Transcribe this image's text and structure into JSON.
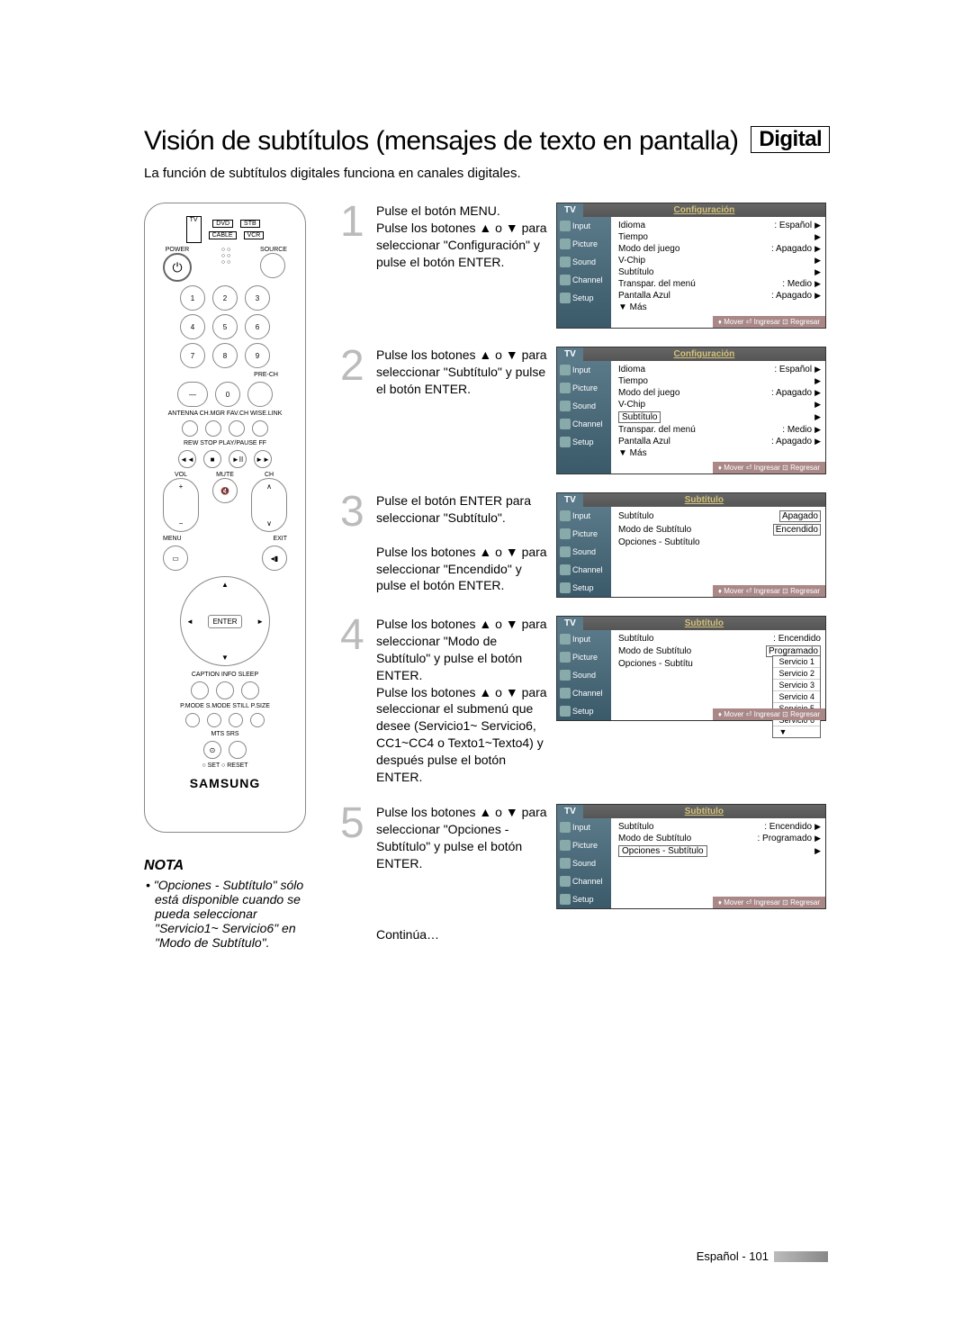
{
  "title": "Visión de subtítulos (mensajes de texto en pantalla)",
  "title_badge": "Digital",
  "intro": "La función de subtítulos digitales funciona en canales digitales.",
  "remote": {
    "top_row_left": "TV",
    "top_row1": [
      "DVD",
      "STB"
    ],
    "top_row2": [
      "CABLE",
      "VCR"
    ],
    "power_label": "POWER",
    "source_label": "SOURCE",
    "numpad": [
      "1",
      "2",
      "3",
      "4",
      "5",
      "6",
      "7",
      "8",
      "9",
      "0"
    ],
    "prech": "PRE-CH",
    "dash": "—",
    "row_labels": "ANTENNA  CH.MGR  FAV.CH  WISE.LINK",
    "transport": "REW   STOP  PLAY/PAUSE   FF",
    "vol": "VOL",
    "ch": "CH",
    "mute": "MUTE",
    "menu": "MENU",
    "exit": "EXIT",
    "enter": "ENTER",
    "row_caption": "CAPTION   INFO   SLEEP",
    "row_pmode": "P.MODE  S.MODE  STILL  P.SIZE",
    "row_mts": "MTS   SRS",
    "row_set": "○ SET   ○ RESET",
    "brand": "SAMSUNG"
  },
  "nota_title": "NOTA",
  "nota_body": "• \"Opciones - Subtítulo\" sólo está disponible cuando se pueda seleccionar \"Servicio1~ Servicio6\" en \"Modo de Subtítulo\".",
  "steps": [
    {
      "num": "1",
      "text": "Pulse el botón MENU.\nPulse los botones ▲ o ▼ para seleccionar \"Configuración\" y pulse el botón ENTER.",
      "menu_title": "Configuración",
      "rows": [
        {
          "label": "Idioma",
          "value": ": Español",
          "arrow": true
        },
        {
          "label": "Tiempo",
          "value": "",
          "arrow": true
        },
        {
          "label": "Modo del juego",
          "value": ": Apagado",
          "arrow": true
        },
        {
          "label": "V-Chip",
          "value": "",
          "arrow": true
        },
        {
          "label": "Subtítulo",
          "value": "",
          "arrow": true
        },
        {
          "label": "Transpar. del menú",
          "value": ": Medio",
          "arrow": true
        },
        {
          "label": "Pantalla Azul",
          "value": ": Apagado",
          "arrow": true
        },
        {
          "label": "▼ Más",
          "value": "",
          "arrow": false
        }
      ]
    },
    {
      "num": "2",
      "text": "Pulse los botones ▲ o ▼ para seleccionar \"Subtítulo\" y pulse el botón ENTER.",
      "menu_title": "Configuración",
      "highlight_label": "Subtítulo",
      "rows": [
        {
          "label": "Idioma",
          "value": ": Español",
          "arrow": true
        },
        {
          "label": "Tiempo",
          "value": "",
          "arrow": true
        },
        {
          "label": "Modo del juego",
          "value": ": Apagado",
          "arrow": true
        },
        {
          "label": "V-Chip",
          "value": "",
          "arrow": true
        },
        {
          "label": "Subtítulo",
          "value": "",
          "arrow": true,
          "hl": true
        },
        {
          "label": "Transpar. del menú",
          "value": ": Medio",
          "arrow": true
        },
        {
          "label": "Pantalla Azul",
          "value": ": Apagado",
          "arrow": true
        },
        {
          "label": "▼ Más",
          "value": "",
          "arrow": false
        }
      ]
    },
    {
      "num": "3",
      "text": "Pulse el botón ENTER para seleccionar \"Subtítulo\".\n\nPulse los botones ▲ o ▼ para seleccionar \"Encendido\" y pulse el botón ENTER.",
      "menu_title": "Subtítulo",
      "rows": [
        {
          "label": "Subtítulo",
          "value": "",
          "arrow": false,
          "box": "Apagado"
        },
        {
          "label": "Modo de Subtítulo",
          "value": "",
          "arrow": false,
          "box": "Encendido"
        },
        {
          "label": "Opciones - Subtítulo",
          "value": "",
          "arrow": false
        }
      ]
    },
    {
      "num": "4",
      "text": "Pulse los botones ▲ o ▼ para seleccionar \"Modo de Subtítulo\" y pulse el botón ENTER.\nPulse los botones ▲ o ▼ para seleccionar el submenú que desee (Servicio1~ Servicio6, CC1~CC4 o Texto1~Texto4) y después pulse el botón ENTER.",
      "menu_title": "Subtítulo",
      "rows": [
        {
          "label": "Subtítulo",
          "value": ": Encendido",
          "arrow": false
        },
        {
          "label": "Modo de Subtítulo",
          "value": "",
          "arrow": false,
          "box": "Programado"
        },
        {
          "label": "Opciones - Subtítu",
          "value": "",
          "arrow": false
        }
      ],
      "dropdown": [
        "Servicio 1",
        "Servicio 2",
        "Servicio 3",
        "Servicio 4",
        "Servicio 5",
        "Servicio 6",
        "▼"
      ]
    },
    {
      "num": "5",
      "text": "Pulse los botones ▲ o ▼ para seleccionar \"Opciones - Subtítulo\" y pulse el botón ENTER.",
      "menu_title": "Subtítulo",
      "rows": [
        {
          "label": "Subtítulo",
          "value": ": Encendido",
          "arrow": true
        },
        {
          "label": "Modo de Subtítulo",
          "value": ": Programado",
          "arrow": true
        },
        {
          "label": "Opciones - Subtítulo",
          "value": "",
          "arrow": true,
          "hl": true
        }
      ]
    }
  ],
  "continua": "Continúa…",
  "sidebar_items": [
    "Input",
    "Picture",
    "Sound",
    "Channel",
    "Setup"
  ],
  "footer_text": "Mover      Ingresar      Regresar",
  "page_footer": "Español - 101",
  "tv_label": "TV",
  "colors": {
    "step_num": "#bbbbbb",
    "tv_header_bg": "#5a7a8a",
    "tv_sidebar_bg": "#4a6a7a",
    "tv_footer_bg": "#a88070",
    "tv_title_color": "#d4c27a"
  }
}
